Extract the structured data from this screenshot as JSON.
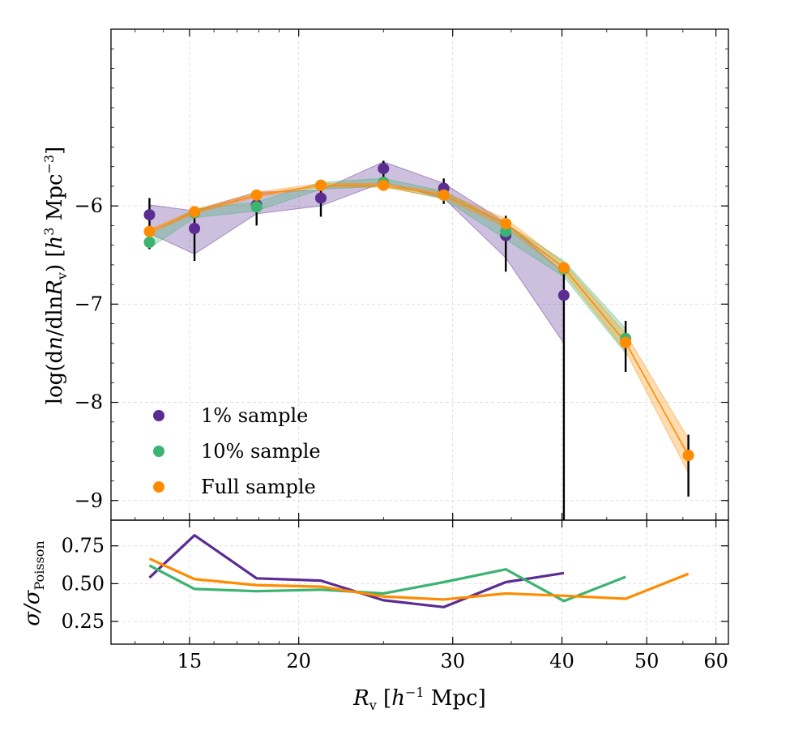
{
  "chart_data": [
    {
      "type": "scatter",
      "panel": "top",
      "xlabel": "R_v [h^-1 Mpc]",
      "ylabel": "log(dn/dlnR_v) [h^3 Mpc^-3]",
      "ylabel_text": {
        "pre": "log(d",
        "n": "n",
        "mid": "/dln",
        "R": "R",
        "sub": "v",
        "post": ") [",
        "h": "h",
        "sup": "3",
        "unit": " Mpc",
        "sup2": "−3",
        "end": "]"
      },
      "x_scale": "log",
      "xlim": [
        12.2,
        62
      ],
      "ylim": [
        -9.2,
        -4.2
      ],
      "yticks": [
        -6,
        -7,
        -8,
        -9
      ],
      "ytick_labels": [
        "−6",
        "−7",
        "−8",
        "−9"
      ],
      "grid": true,
      "legend_position": "lower-left",
      "x": [
        13.5,
        15.2,
        17.9,
        21.2,
        25.0,
        29.3,
        34.5,
        40.2,
        47.3,
        55.8
      ],
      "series": [
        {
          "name": "1% sample",
          "color": "#5b2c91",
          "x": [
            13.5,
            15.2,
            17.9,
            21.2,
            25.0,
            29.3,
            34.5,
            40.2
          ],
          "values": [
            -6.09,
            -6.23,
            -5.99,
            -5.92,
            -5.62,
            -5.82,
            -6.3,
            -6.91
          ],
          "err_low": [
            0.35,
            0.33,
            0.21,
            0.19,
            0.12,
            0.16,
            0.37,
            3.0
          ],
          "err_high": [
            0.17,
            0.13,
            0.14,
            0.14,
            0.08,
            0.1,
            0.2,
            0.33
          ],
          "band_low": [
            -6.28,
            -6.49,
            -6.08,
            -6.0,
            -5.76,
            -5.92,
            -6.53,
            -7.4
          ],
          "band_high": [
            -5.99,
            -6.05,
            -5.86,
            -5.84,
            -5.55,
            -5.77,
            -6.17,
            -6.68
          ]
        },
        {
          "name": "10% sample",
          "color": "#3cb371",
          "x": [
            13.5,
            15.2,
            17.9,
            21.2,
            25.0,
            29.3,
            34.5,
            40.2,
            47.3
          ],
          "values": [
            -6.37,
            -6.07,
            -6.01,
            -5.79,
            -5.76,
            -5.89,
            -6.26,
            -6.64,
            -7.35
          ],
          "band_low": [
            -6.43,
            -6.12,
            -6.05,
            -5.83,
            -5.8,
            -5.93,
            -6.34,
            -6.72,
            -7.5
          ],
          "band_high": [
            -6.3,
            -6.03,
            -5.96,
            -5.76,
            -5.72,
            -5.85,
            -6.18,
            -6.56,
            -7.25
          ]
        },
        {
          "name": "Full sample",
          "color": "#ff8c00",
          "x": [
            13.5,
            15.2,
            17.9,
            21.2,
            25.0,
            29.3,
            34.5,
            40.2,
            47.3,
            55.8
          ],
          "values": [
            -6.26,
            -6.06,
            -5.89,
            -5.79,
            -5.79,
            -5.89,
            -6.18,
            -6.63,
            -7.39,
            -8.54
          ],
          "band_low": [
            -6.28,
            -6.08,
            -5.91,
            -5.81,
            -5.81,
            -5.92,
            -6.22,
            -6.68,
            -7.48,
            -8.72
          ],
          "band_high": [
            -6.24,
            -6.04,
            -5.86,
            -5.77,
            -5.77,
            -5.86,
            -6.13,
            -6.58,
            -7.3,
            -8.37
          ],
          "err_low": [
            null,
            null,
            null,
            null,
            null,
            null,
            null,
            null,
            0.3,
            0.42
          ],
          "err_high": [
            null,
            null,
            null,
            null,
            null,
            null,
            null,
            null,
            0.22,
            0.21
          ]
        }
      ],
      "legend": [
        "1% sample",
        "10% sample",
        "Full sample"
      ]
    },
    {
      "type": "line",
      "panel": "bottom",
      "ylabel": "σ/σ_Poisson",
      "ylabel_text": {
        "main": "σ/σ",
        "sub": "Poisson"
      },
      "xlabel_text": {
        "R": "R",
        "sub": "v",
        "post": " [",
        "h": "h",
        "sup": "−1",
        "unit": " Mpc]"
      },
      "x_scale": "log",
      "xlim": [
        12.2,
        62
      ],
      "ylim": [
        0.1,
        0.92
      ],
      "yticks": [
        0.25,
        0.5,
        0.75
      ],
      "ytick_labels": [
        "0.25",
        "0.50",
        "0.75"
      ],
      "xticks": [
        15,
        20,
        30,
        40,
        50,
        60
      ],
      "xtick_labels": [
        "15",
        "20",
        "30",
        "40",
        "50",
        "60"
      ],
      "series": [
        {
          "name": "1% sample",
          "color": "#5b2c91",
          "x": [
            13.5,
            15.2,
            17.9,
            21.2,
            25.0,
            29.3,
            34.5,
            40.2
          ],
          "values": [
            0.54,
            0.82,
            0.535,
            0.52,
            0.39,
            0.345,
            0.51,
            0.57
          ]
        },
        {
          "name": "10% sample",
          "color": "#3cb371",
          "x": [
            13.5,
            15.2,
            17.9,
            21.2,
            25.0,
            29.3,
            34.5,
            40.2,
            47.3
          ],
          "values": [
            0.62,
            0.465,
            0.45,
            0.46,
            0.435,
            0.51,
            0.595,
            0.385,
            0.545
          ]
        },
        {
          "name": "Full sample",
          "color": "#ff8c00",
          "x": [
            13.5,
            15.2,
            17.9,
            21.2,
            25.0,
            29.3,
            34.5,
            40.2,
            47.3,
            55.8
          ],
          "values": [
            0.665,
            0.53,
            0.49,
            0.48,
            0.415,
            0.395,
            0.435,
            0.42,
            0.4,
            0.565
          ]
        }
      ]
    }
  ]
}
